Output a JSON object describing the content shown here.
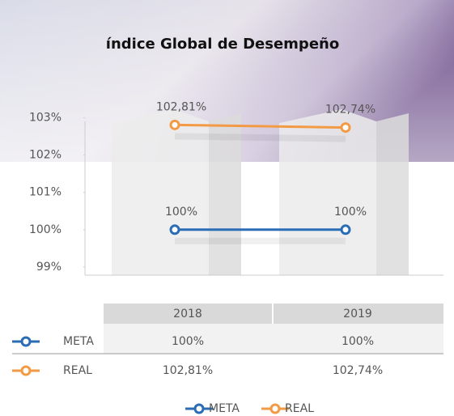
{
  "chart_data": {
    "type": "line",
    "title": "índice Global de Desempeño",
    "categories": [
      "2018",
      "2019"
    ],
    "series": [
      {
        "name": "META",
        "color": "#2a6db5",
        "values": [
          100,
          100
        ],
        "value_labels": [
          "100%",
          "100%"
        ]
      },
      {
        "name": "REAL",
        "color": "#f39a45",
        "values": [
          102.81,
          102.74
        ],
        "value_labels": [
          "102,81%",
          "102,74%"
        ]
      }
    ],
    "ylim": [
      98.78,
      103.4
    ],
    "yticks": [
      {
        "value": 99,
        "label": "99%"
      },
      {
        "value": 100,
        "label": "100%"
      },
      {
        "value": 101,
        "label": "101%"
      },
      {
        "value": 102,
        "label": "102%"
      },
      {
        "value": 103,
        "label": "103%"
      }
    ]
  }
}
